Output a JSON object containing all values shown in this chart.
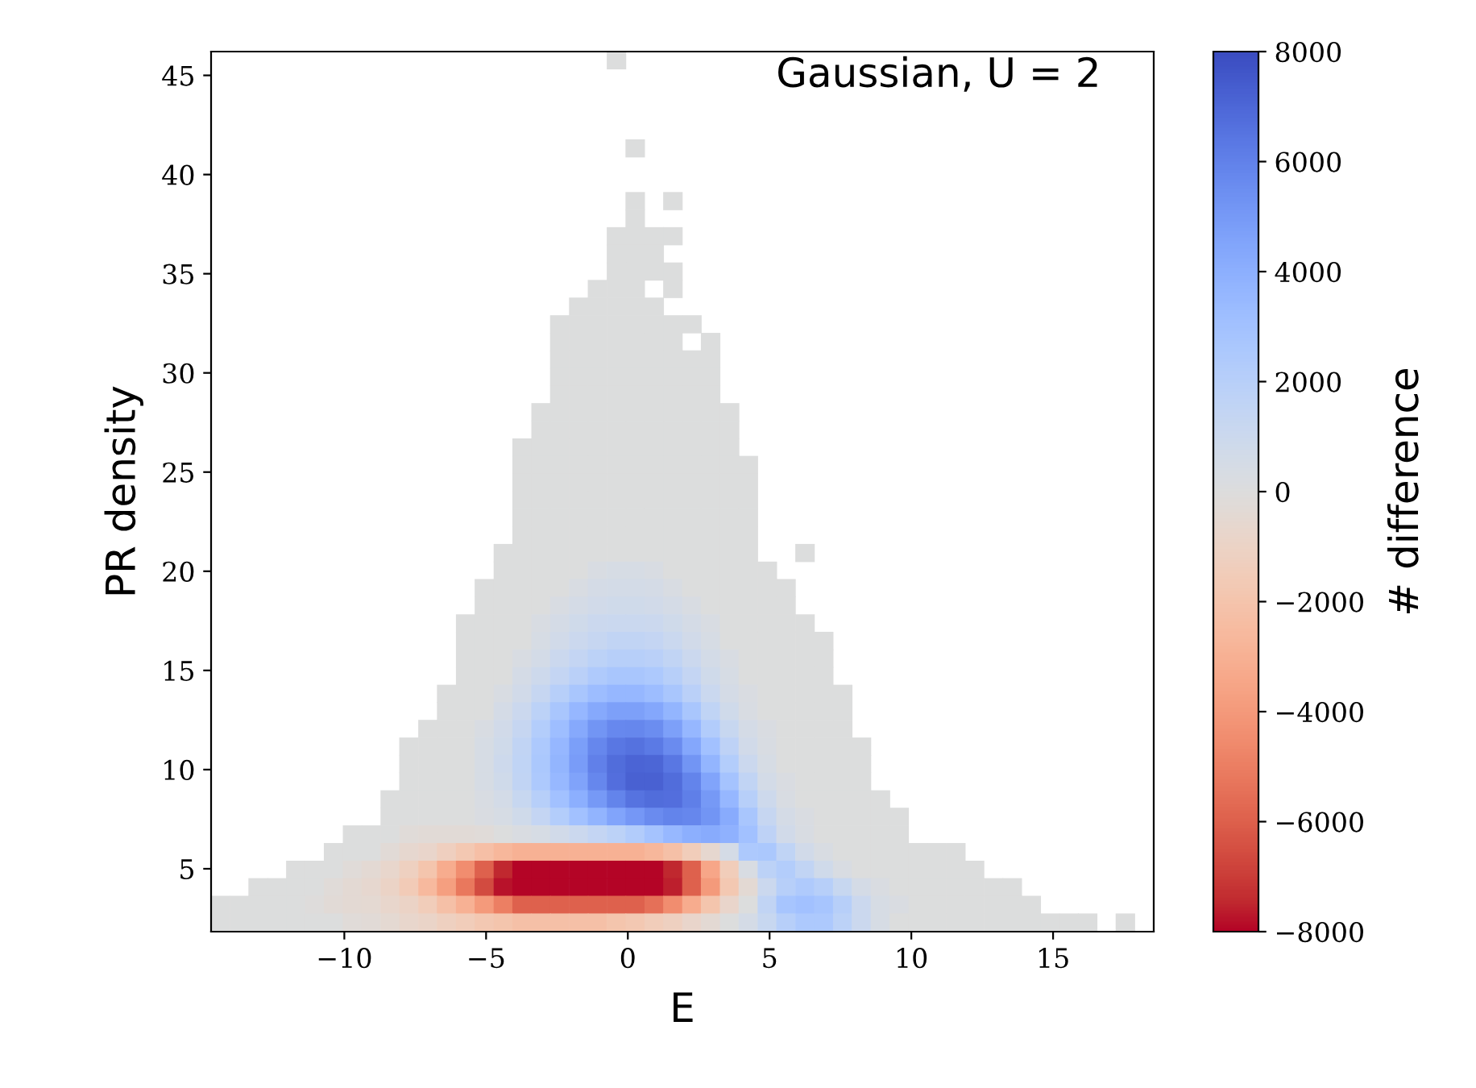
{
  "chart_data": {
    "type": "scatter",
    "marker": "square",
    "xlabel": "E",
    "ylabel": "PR density",
    "clabel": "# difference",
    "annotations": [
      "Gaussian, U = 2"
    ],
    "xlim": [
      -14.7,
      18.55
    ],
    "ylim": [
      1.83,
      46.2
    ],
    "xticks": [
      {
        "value": -10,
        "label": "−10"
      },
      {
        "value": -5,
        "label": "−5"
      },
      0,
      5,
      10,
      15
    ],
    "yticks": [
      5,
      10,
      15,
      20,
      25,
      30,
      35,
      40,
      45
    ],
    "clim": [
      -8000,
      8000
    ],
    "cticks": [
      {
        "value": -8000,
        "label": "−8000"
      },
      {
        "value": -6000,
        "label": "−6000"
      },
      {
        "value": -4000,
        "label": "−4000"
      },
      {
        "value": -2000,
        "label": "−2000"
      },
      0,
      2000,
      4000,
      6000,
      8000
    ],
    "x": [
      -0.4,
      0.26,
      0.26,
      1.59,
      0.26,
      -0.4,
      0.26,
      0.93,
      1.59,
      -0.4,
      0.26,
      0.93,
      -0.4,
      0.26,
      0.93,
      1.59,
      -1.07,
      -0.4,
      0.26,
      1.59,
      -1.73,
      -1.07,
      -0.4,
      0.26,
      0.93,
      -2.4,
      -1.73,
      -1.07,
      -0.4,
      0.26,
      0.93,
      1.59,
      2.26,
      -2.4,
      -1.73,
      -1.07,
      -0.4,
      0.26,
      0.93,
      1.59,
      2.92,
      -2.4,
      -1.73,
      -1.07,
      -0.4,
      0.26,
      0.93,
      1.59,
      2.26,
      2.92,
      -2.4,
      -1.73,
      -1.07,
      -0.4,
      0.26,
      0.93,
      1.59,
      2.26,
      2.92,
      -2.4,
      -1.73,
      -1.07,
      -0.4,
      0.26,
      0.93,
      1.59,
      2.26,
      2.92,
      -3.06,
      -2.4,
      -1.73,
      -1.07,
      -0.4,
      0.26,
      0.93,
      1.59,
      2.26,
      2.92,
      3.59,
      -3.06,
      -2.4,
      -1.73,
      -1.07,
      -0.4,
      0.26,
      0.93,
      1.59,
      2.26,
      2.92,
      3.59,
      -3.73,
      -3.06,
      -2.4,
      -1.73,
      -1.07,
      -0.4,
      0.26,
      0.93,
      1.59,
      2.26,
      2.92,
      3.59,
      -3.73,
      -3.06,
      -2.4,
      -1.73,
      -1.07,
      -0.4,
      0.26,
      0.93,
      1.59,
      2.26,
      2.92,
      3.59,
      4.25,
      -3.73,
      -3.06,
      -2.4,
      -1.73,
      -1.07,
      -0.4,
      0.26,
      0.93,
      1.59,
      2.26,
      2.92,
      3.59,
      4.25,
      -3.73,
      -3.06,
      -2.4,
      -1.73,
      -1.07,
      -0.4,
      0.26,
      0.93,
      1.59,
      2.26,
      2.92,
      3.59,
      4.25,
      -3.73,
      -3.06,
      -2.4,
      -1.73,
      -1.07,
      -0.4,
      0.26,
      0.93,
      1.59,
      2.26,
      2.92,
      3.59,
      4.25,
      -3.73,
      -3.06,
      -2.4,
      -1.73,
      -1.07,
      -0.4,
      0.26,
      0.93,
      1.59,
      2.26,
      2.92,
      3.59,
      4.25,
      -4.39,
      -3.73,
      -3.06,
      -2.4,
      -1.73,
      -1.07,
      -0.4,
      0.26,
      0.93,
      1.59,
      2.26,
      2.92,
      3.59,
      4.25,
      6.25,
      -4.39,
      -3.73,
      -3.06,
      -2.4,
      -1.73,
      -1.07,
      -0.4,
      0.26,
      0.93,
      1.59,
      2.26,
      2.92,
      3.59,
      4.25,
      4.92,
      -5.06,
      -4.39,
      -3.73,
      -3.06,
      -2.4,
      -1.73,
      -1.07,
      -0.4,
      0.26,
      0.93,
      1.59,
      2.26,
      2.92,
      3.59,
      4.25,
      4.92,
      5.58,
      -5.06,
      -4.39,
      -3.73,
      -3.06,
      -2.4,
      -1.73,
      -1.07,
      -0.4,
      0.26,
      0.93,
      1.59,
      2.26,
      2.92,
      3.59,
      4.25,
      4.92,
      5.58,
      -5.72,
      -5.06,
      -4.39,
      -3.73,
      -3.06,
      -2.4,
      -1.73,
      -1.07,
      -0.4,
      0.26,
      0.93,
      1.59,
      2.26,
      2.92,
      3.59,
      4.25,
      4.92,
      5.58,
      6.25,
      -5.72,
      -5.06,
      -4.39,
      -3.73,
      -3.06,
      -2.4,
      -1.73,
      -1.07,
      -0.4,
      0.26,
      0.93,
      1.59,
      2.26,
      2.92,
      3.59,
      4.25,
      4.92,
      5.58,
      6.25,
      6.91,
      -5.72,
      -5.06,
      -4.39,
      -3.73,
      -3.06,
      -2.4,
      -1.73,
      -1.07,
      -0.4,
      0.26,
      0.93,
      1.59,
      2.26,
      2.92,
      3.59,
      4.25,
      4.92,
      5.58,
      6.25,
      6.91,
      -5.72,
      -5.06,
      -4.39,
      -3.73,
      -3.06,
      -2.4,
      -1.73,
      -1.07,
      -0.4,
      0.26,
      0.93,
      1.59,
      2.26,
      2.92,
      3.59,
      4.25,
      4.92,
      5.58,
      6.25,
      6.91,
      -6.39,
      -5.72,
      -5.06,
      -4.39,
      -3.73,
      -3.06,
      -2.4,
      -1.73,
      -1.07,
      -0.4,
      0.26,
      0.93,
      1.59,
      2.26,
      2.92,
      3.59,
      4.25,
      4.92,
      5.58,
      6.25,
      6.91,
      7.58,
      -6.39,
      -5.72,
      -5.06,
      -4.39,
      -3.73,
      -3.06,
      -2.4,
      -1.73,
      -1.07,
      -0.4,
      0.26,
      0.93,
      1.59,
      2.26,
      2.92,
      3.59,
      4.25,
      4.92,
      5.58,
      6.25,
      6.91,
      7.58,
      -7.05,
      -6.39,
      -5.72,
      -5.06,
      -4.39,
      -3.73,
      -3.06,
      -2.4,
      -1.73,
      -1.07,
      -0.4,
      0.26,
      0.93,
      1.59,
      2.26,
      2.92,
      3.59,
      4.25,
      4.92,
      5.58,
      6.25,
      6.91,
      7.58,
      -7.72,
      -7.05,
      -6.39,
      -5.72,
      -5.06,
      -4.39,
      -3.73,
      -3.06,
      -2.4,
      -1.73,
      -1.07,
      -0.4,
      0.26,
      0.93,
      1.59,
      2.26,
      2.92,
      3.59,
      4.25,
      4.92,
      5.58,
      6.25,
      6.91,
      7.58,
      8.24,
      -7.72,
      -7.05,
      -6.39,
      -5.72,
      -5.06,
      -4.39,
      -3.73,
      -3.06,
      -2.4,
      -1.73,
      -1.07,
      -0.4,
      0.26,
      0.93,
      1.59,
      2.26,
      2.92,
      3.59,
      4.25,
      4.92,
      5.58,
      6.25,
      6.91,
      7.58,
      8.24,
      -7.72,
      -7.05,
      -6.39,
      -5.72,
      -5.06,
      -4.39,
      -3.73,
      -3.06,
      -2.4,
      -1.73,
      -1.07,
      -0.4,
      0.26,
      0.93,
      1.59,
      2.26,
      2.92,
      3.59,
      4.25,
      4.92,
      5.58,
      6.25,
      6.91,
      7.58,
      8.24,
      -8.38,
      -7.72,
      -7.05,
      -6.39,
      -5.72,
      -5.06,
      -4.39,
      -3.73,
      -3.06,
      -2.4,
      -1.73,
      -1.07,
      -0.4,
      0.26,
      0.93,
      1.59,
      2.26,
      2.92,
      3.59,
      4.25,
      4.92,
      5.58,
      6.25,
      6.91,
      7.58,
      8.24,
      8.91,
      -8.38,
      -7.72,
      -7.05,
      -6.39,
      -5.72,
      -5.06,
      -4.39,
      -3.73,
      -3.06,
      -2.4,
      -1.73,
      -1.07,
      -0.4,
      0.26,
      0.93,
      1.59,
      2.26,
      2.92,
      3.59,
      4.25,
      4.92,
      5.58,
      6.25,
      6.91,
      7.58,
      8.24,
      8.91,
      9.57,
      -9.71,
      -9.05,
      -8.38,
      -7.72,
      -7.05,
      -6.39,
      -5.72,
      -5.06,
      -4.39,
      -3.73,
      -3.06,
      -2.4,
      -1.73,
      -1.07,
      -0.4,
      0.26,
      0.93,
      1.59,
      2.26,
      2.92,
      3.59,
      4.25,
      4.92,
      5.58,
      6.25,
      6.91,
      7.58,
      8.24,
      8.91,
      9.57,
      -10.38,
      -9.71,
      -9.05,
      -8.38,
      -7.72,
      -7.05,
      -6.39,
      -5.72,
      -5.06,
      -4.39,
      -3.73,
      -3.06,
      -2.4,
      -1.73,
      -1.07,
      -0.4,
      0.26,
      0.93,
      1.59,
      2.26,
      2.92,
      3.59,
      4.25,
      4.92,
      5.58,
      6.25,
      6.91,
      7.58,
      8.24,
      8.91,
      9.57,
      10.24,
      10.9,
      11.57,
      -11.71,
      -11.04,
      -10.38,
      -9.71,
      -9.05,
      -8.38,
      -7.72,
      -7.05,
      -6.39,
      -5.72,
      -5.06,
      -4.39,
      -3.73,
      -3.06,
      -2.4,
      -1.73,
      -1.07,
      -0.4,
      0.26,
      0.93,
      1.59,
      2.26,
      2.92,
      3.59,
      4.25,
      4.92,
      5.58,
      6.25,
      6.91,
      7.58,
      8.24,
      8.91,
      9.57,
      10.24,
      10.9,
      11.57,
      12.23,
      -13.04,
      -12.37,
      -11.71,
      -11.04,
      -10.38,
      -9.71,
      -9.05,
      -8.38,
      -7.72,
      -7.05,
      -6.39,
      -5.72,
      -5.06,
      -4.39,
      -3.73,
      -3.06,
      -2.4,
      -1.73,
      -1.07,
      -0.4,
      0.26,
      0.93,
      1.59,
      2.26,
      2.92,
      3.59,
      4.25,
      4.92,
      5.58,
      6.25,
      6.91,
      7.58,
      8.24,
      8.91,
      9.57,
      10.24,
      10.9,
      11.57,
      12.23,
      12.9,
      13.56,
      -14.37,
      -13.7,
      -13.04,
      -12.37,
      -11.71,
      -11.04,
      -10.38,
      -9.71,
      -9.05,
      -8.38,
      -7.72,
      -7.05,
      -6.39,
      -5.72,
      -5.06,
      -4.39,
      -3.73,
      -3.06,
      -2.4,
      -1.73,
      -1.07,
      -0.4,
      0.26,
      0.93,
      1.59,
      2.26,
      2.92,
      3.59,
      4.25,
      4.92,
      5.58,
      6.25,
      6.91,
      7.58,
      8.24,
      8.91,
      9.57,
      10.24,
      10.9,
      11.57,
      12.23,
      12.9,
      13.56,
      14.23,
      -14.37,
      -13.7,
      -13.04,
      -12.37,
      -11.71,
      -11.04,
      -10.38,
      -9.71,
      -9.05,
      -8.38,
      -7.72,
      -7.05,
      -6.39,
      -5.72,
      -5.06,
      -4.39,
      -3.73,
      -3.06,
      -2.4,
      -1.73,
      -1.07,
      -0.4,
      0.26,
      0.93,
      1.59,
      2.26,
      2.92,
      3.59,
      4.25,
      4.92,
      5.58,
      6.25,
      6.91,
      7.58,
      8.24,
      8.91,
      9.57,
      10.24,
      10.9,
      11.57,
      12.23,
      12.9,
      13.56,
      14.23,
      14.89,
      15.56,
      16.22,
      17.55
    ],
    "values": [
      45.76,
      41.32,
      38.66,
      38.66,
      37.77,
      36.89,
      36.89,
      36.89,
      36.89,
      36.0,
      36.0,
      36.0,
      35.11,
      35.11,
      35.11,
      35.11,
      34.23,
      34.23,
      34.23,
      34.23,
      33.34,
      33.34,
      33.34,
      33.34,
      33.34,
      32.45,
      32.45,
      32.45,
      32.45,
      32.45,
      32.45,
      32.45,
      32.45,
      31.56,
      31.56,
      31.56,
      31.56,
      31.56,
      31.56,
      31.56,
      31.56,
      30.68,
      30.68,
      30.68,
      30.68,
      30.68,
      30.68,
      30.68,
      30.68,
      30.68,
      29.79,
      29.79,
      29.79,
      29.79,
      29.79,
      29.79,
      29.79,
      29.79,
      29.79,
      28.9,
      28.9,
      28.9,
      28.9,
      28.9,
      28.9,
      28.9,
      28.9,
      28.9,
      28.02,
      28.02,
      28.02,
      28.02,
      28.02,
      28.02,
      28.02,
      28.02,
      28.02,
      28.02,
      28.02,
      27.13,
      27.13,
      27.13,
      27.13,
      27.13,
      27.13,
      27.13,
      27.13,
      27.13,
      27.13,
      27.13,
      26.24,
      26.24,
      26.24,
      26.24,
      26.24,
      26.24,
      26.24,
      26.24,
      26.24,
      26.24,
      26.24,
      26.24,
      25.36,
      25.36,
      25.36,
      25.36,
      25.36,
      25.36,
      25.36,
      25.36,
      25.36,
      25.36,
      25.36,
      25.36,
      25.36,
      24.47,
      24.47,
      24.47,
      24.47,
      24.47,
      24.47,
      24.47,
      24.47,
      24.47,
      24.47,
      24.47,
      24.47,
      24.47,
      23.58,
      23.58,
      23.58,
      23.58,
      23.58,
      23.58,
      23.58,
      23.58,
      23.58,
      23.58,
      23.58,
      23.58,
      23.58,
      22.69,
      22.69,
      22.69,
      22.69,
      22.69,
      22.69,
      22.69,
      22.69,
      22.69,
      22.69,
      22.69,
      22.69,
      22.69,
      21.81,
      21.81,
      21.81,
      21.81,
      21.81,
      21.81,
      21.81,
      21.81,
      21.81,
      21.81,
      21.81,
      21.81,
      21.81,
      20.92,
      20.92,
      20.92,
      20.92,
      20.92,
      20.92,
      20.92,
      20.92,
      20.92,
      20.92,
      20.92,
      20.92,
      20.92,
      20.92,
      20.92,
      20.03,
      20.03,
      20.03,
      20.03,
      20.03,
      20.03,
      20.03,
      20.03,
      20.03,
      20.03,
      20.03,
      20.03,
      20.03,
      20.03,
      20.03,
      19.15,
      19.15,
      19.15,
      19.15,
      19.15,
      19.15,
      19.15,
      19.15,
      19.15,
      19.15,
      19.15,
      19.15,
      19.15,
      19.15,
      19.15,
      19.15,
      19.15,
      18.26,
      18.26,
      18.26,
      18.26,
      18.26,
      18.26,
      18.26,
      18.26,
      18.26,
      18.26,
      18.26,
      18.26,
      18.26,
      18.26,
      18.26,
      18.26,
      18.26,
      17.37,
      17.37,
      17.37,
      17.37,
      17.37,
      17.37,
      17.37,
      17.37,
      17.37,
      17.37,
      17.37,
      17.37,
      17.37,
      17.37,
      17.37,
      17.37,
      17.37,
      17.37,
      17.37,
      16.49,
      16.49,
      16.49,
      16.49,
      16.49,
      16.49,
      16.49,
      16.49,
      16.49,
      16.49,
      16.49,
      16.49,
      16.49,
      16.49,
      16.49,
      16.49,
      16.49,
      16.49,
      16.49,
      16.49,
      15.6,
      15.6,
      15.6,
      15.6,
      15.6,
      15.6,
      15.6,
      15.6,
      15.6,
      15.6,
      15.6,
      15.6,
      15.6,
      15.6,
      15.6,
      15.6,
      15.6,
      15.6,
      15.6,
      15.6,
      14.71,
      14.71,
      14.71,
      14.71,
      14.71,
      14.71,
      14.71,
      14.71,
      14.71,
      14.71,
      14.71,
      14.71,
      14.71,
      14.71,
      14.71,
      14.71,
      14.71,
      14.71,
      14.71,
      14.71,
      13.82,
      13.82,
      13.82,
      13.82,
      13.82,
      13.82,
      13.82,
      13.82,
      13.82,
      13.82,
      13.82,
      13.82,
      13.82,
      13.82,
      13.82,
      13.82,
      13.82,
      13.82,
      13.82,
      13.82,
      13.82,
      13.82,
      12.94,
      12.94,
      12.94,
      12.94,
      12.94,
      12.94,
      12.94,
      12.94,
      12.94,
      12.94,
      12.94,
      12.94,
      12.94,
      12.94,
      12.94,
      12.94,
      12.94,
      12.94,
      12.94,
      12.94,
      12.94,
      12.94,
      12.05,
      12.05,
      12.05,
      12.05,
      12.05,
      12.05,
      12.05,
      12.05,
      12.05,
      12.05,
      12.05,
      12.05,
      12.05,
      12.05,
      12.05,
      12.05,
      12.05,
      12.05,
      12.05,
      12.05,
      12.05,
      12.05,
      12.05,
      11.16,
      11.16,
      11.16,
      11.16,
      11.16,
      11.16,
      11.16,
      11.16,
      11.16,
      11.16,
      11.16,
      11.16,
      11.16,
      11.16,
      11.16,
      11.16,
      11.16,
      11.16,
      11.16,
      11.16,
      11.16,
      11.16,
      11.16,
      11.16,
      11.16,
      10.28,
      10.28,
      10.28,
      10.28,
      10.28,
      10.28,
      10.28,
      10.28,
      10.28,
      10.28,
      10.28,
      10.28,
      10.28,
      10.28,
      10.28,
      10.28,
      10.28,
      10.28,
      10.28,
      10.28,
      10.28,
      10.28,
      10.28,
      10.28,
      10.28,
      9.39,
      9.39,
      9.39,
      9.39,
      9.39,
      9.39,
      9.39,
      9.39,
      9.39,
      9.39,
      9.39,
      9.39,
      9.39,
      9.39,
      9.39,
      9.39,
      9.39,
      9.39,
      9.39,
      9.39,
      9.39,
      9.39,
      9.39,
      9.39,
      9.39,
      8.5,
      8.5,
      8.5,
      8.5,
      8.5,
      8.5,
      8.5,
      8.5,
      8.5,
      8.5,
      8.5,
      8.5,
      8.5,
      8.5,
      8.5,
      8.5,
      8.5,
      8.5,
      8.5,
      8.5,
      8.5,
      8.5,
      8.5,
      8.5,
      8.5,
      8.5,
      8.5,
      7.62,
      7.62,
      7.62,
      7.62,
      7.62,
      7.62,
      7.62,
      7.62,
      7.62,
      7.62,
      7.62,
      7.62,
      7.62,
      7.62,
      7.62,
      7.62,
      7.62,
      7.62,
      7.62,
      7.62,
      7.62,
      7.62,
      7.62,
      7.62,
      7.62,
      7.62,
      7.62,
      7.62,
      6.73,
      6.73,
      6.73,
      6.73,
      6.73,
      6.73,
      6.73,
      6.73,
      6.73,
      6.73,
      6.73,
      6.73,
      6.73,
      6.73,
      6.73,
      6.73,
      6.73,
      6.73,
      6.73,
      6.73,
      6.73,
      6.73,
      6.73,
      6.73,
      6.73,
      6.73,
      6.73,
      6.73,
      6.73,
      6.73,
      5.84,
      5.84,
      5.84,
      5.84,
      5.84,
      5.84,
      5.84,
      5.84,
      5.84,
      5.84,
      5.84,
      5.84,
      5.84,
      5.84,
      5.84,
      5.84,
      5.84,
      5.84,
      5.84,
      5.84,
      5.84,
      5.84,
      5.84,
      5.84,
      5.84,
      5.84,
      5.84,
      5.84,
      5.84,
      5.84,
      5.84,
      5.84,
      5.84,
      5.84,
      4.95,
      4.95,
      4.95,
      4.95,
      4.95,
      4.95,
      4.95,
      4.95,
      4.95,
      4.95,
      4.95,
      4.95,
      4.95,
      4.95,
      4.95,
      4.95,
      4.95,
      4.95,
      4.95,
      4.95,
      4.95,
      4.95,
      4.95,
      4.95,
      4.95,
      4.95,
      4.95,
      4.95,
      4.95,
      4.95,
      4.95,
      4.95,
      4.95,
      4.95,
      4.95,
      4.95,
      4.95,
      4.07,
      4.07,
      4.07,
      4.07,
      4.07,
      4.07,
      4.07,
      4.07,
      4.07,
      4.07,
      4.07,
      4.07,
      4.07,
      4.07,
      4.07,
      4.07,
      4.07,
      4.07,
      4.07,
      4.07,
      4.07,
      4.07,
      4.07,
      4.07,
      4.07,
      4.07,
      4.07,
      4.07,
      4.07,
      4.07,
      4.07,
      4.07,
      4.07,
      4.07,
      4.07,
      4.07,
      4.07,
      4.07,
      4.07,
      4.07,
      4.07,
      3.18,
      3.18,
      3.18,
      3.18,
      3.18,
      3.18,
      3.18,
      3.18,
      3.18,
      3.18,
      3.18,
      3.18,
      3.18,
      3.18,
      3.18,
      3.18,
      3.18,
      3.18,
      3.18,
      3.18,
      3.18,
      3.18,
      3.18,
      3.18,
      3.18,
      3.18,
      3.18,
      3.18,
      3.18,
      3.18,
      3.18,
      3.18,
      3.18,
      3.18,
      3.18,
      3.18,
      3.18,
      3.18,
      3.18,
      3.18,
      3.18,
      3.18,
      3.18,
      3.18,
      2.29,
      2.29,
      2.29,
      2.29,
      2.29,
      2.29,
      2.29,
      2.29,
      2.29,
      2.29,
      2.29,
      2.29,
      2.29,
      2.29,
      2.29,
      2.29,
      2.29,
      2.29,
      2.29,
      2.29,
      2.29,
      2.29,
      2.29,
      2.29,
      2.29,
      2.29,
      2.29,
      2.29,
      2.29,
      2.29,
      2.29,
      2.29,
      2.29,
      2.29,
      2.29,
      2.29,
      2.29,
      2.29,
      2.29,
      2.29,
      2.29,
      2.29,
      2.29,
      2.29,
      2.29,
      2.29,
      2.29,
      2.29
    ],
    "cvalues": [
      0,
      0,
      0,
      0,
      0,
      0,
      0,
      0,
      0,
      0,
      0,
      0,
      0,
      0,
      0,
      0,
      0,
      0,
      0,
      0,
      0,
      0,
      0,
      0,
      0,
      0,
      0,
      0,
      0,
      0,
      0,
      0,
      0,
      0,
      0,
      0,
      0,
      0,
      0,
      0,
      0,
      0,
      0,
      0,
      0,
      0,
      0,
      0,
      0,
      0,
      0,
      0,
      0,
      0,
      0,
      0,
      0,
      0,
      0,
      0,
      0,
      0,
      0,
      0,
      0,
      0,
      0,
      0,
      0,
      0,
      0,
      0,
      0,
      0,
      0,
      0,
      0,
      0,
      0,
      0,
      0,
      0,
      0,
      0,
      0,
      0,
      0,
      0,
      0,
      0,
      0,
      0,
      0,
      0,
      0,
      0,
      0,
      0,
      0,
      0,
      0,
      0,
      0,
      0,
      0,
      0,
      0,
      0,
      0,
      0,
      0,
      0,
      0,
      0,
      0,
      0,
      0,
      0,
      0,
      0,
      0,
      0,
      0,
      0,
      0,
      0,
      0,
      0,
      0,
      0,
      0,
      0,
      0,
      0,
      0,
      0,
      0,
      0,
      0,
      0,
      0,
      0,
      0,
      0,
      0,
      0,
      0,
      0,
      0,
      0,
      0,
      0,
      0,
      0,
      0,
      0,
      0,
      0,
      0,
      0,
      0,
      0,
      0,
      0,
      0,
      0,
      0,
      0,
      0,
      0,
      0,
      0,
      0,
      0,
      0,
      0,
      0,
      0,
      0,
      0,
      0,
      0,
      0,
      0,
      0,
      0,
      0,
      300,
      400,
      400,
      300,
      0,
      0,
      0,
      0,
      0,
      0,
      0,
      0,
      0,
      0,
      0,
      300,
      500,
      600,
      600,
      500,
      300,
      0,
      0,
      0,
      0,
      0,
      0,
      0,
      0,
      0,
      0,
      300,
      500,
      700,
      800,
      800,
      700,
      500,
      300,
      0,
      0,
      0,
      0,
      0,
      0,
      0,
      0,
      0,
      300,
      500,
      800,
      1000,
      1100,
      1100,
      1000,
      800,
      500,
      300,
      0,
      0,
      0,
      0,
      0,
      0,
      0,
      0,
      0,
      400,
      700,
      1000,
      1300,
      1500,
      1500,
      1400,
      1100,
      700,
      400,
      0,
      0,
      0,
      0,
      0,
      0,
      0,
      0,
      0,
      300,
      600,
      1000,
      1400,
      1800,
      2000,
      2000,
      1900,
      1500,
      1000,
      600,
      300,
      0,
      0,
      0,
      0,
      0,
      0,
      0,
      0,
      500,
      900,
      1400,
      1900,
      2400,
      2700,
      2700,
      2500,
      2000,
      1400,
      800,
      400,
      0,
      0,
      0,
      0,
      0,
      0,
      0,
      0,
      300,
      700,
      1300,
      2000,
      2700,
      3300,
      3600,
      3600,
      3300,
      2700,
      1900,
      1100,
      500,
      200,
      0,
      0,
      0,
      0,
      0,
      0,
      0,
      0,
      500,
      1000,
      1800,
      2700,
      3600,
      4300,
      4700,
      4700,
      4400,
      3700,
      2700,
      1600,
      800,
      300,
      0,
      0,
      0,
      0,
      0,
      0,
      0,
      0,
      300,
      700,
      1300,
      2200,
      3200,
      4300,
      5200,
      5700,
      5800,
      5500,
      4700,
      3600,
      2300,
      1200,
      500,
      200,
      0,
      0,
      0,
      0,
      0,
      0,
      0,
      0,
      400,
      800,
      1500,
      2500,
      3600,
      4800,
      5800,
      6400,
      6600,
      6300,
      5600,
      4400,
      3000,
      1700,
      700,
      300,
      0,
      0,
      0,
      0,
      0,
      0,
      0,
      0,
      0,
      400,
      900,
      1600,
      2600,
      3700,
      4900,
      6000,
      6800,
      7100,
      7000,
      6400,
      5200,
      3700,
      2200,
      1000,
      400,
      0,
      0,
      0,
      0,
      0,
      0,
      0,
      0,
      0,
      400,
      800,
      1500,
      2500,
      3500,
      4600,
      5800,
      6700,
      7200,
      7200,
      6800,
      5900,
      4500,
      2900,
      1500,
      600,
      200,
      0,
      0,
      0,
      0,
      0,
      0,
      0,
      0,
      0,
      300,
      600,
      1200,
      2000,
      3000,
      4000,
      5000,
      5900,
      6500,
      6800,
      6700,
      6100,
      5000,
      3600,
      2000,
      900,
      300,
      0,
      0,
      0,
      0,
      0,
      0,
      0,
      0,
      0,
      0,
      200,
      400,
      800,
      1400,
      2200,
      3000,
      3800,
      4500,
      5100,
      5600,
      5900,
      5800,
      5200,
      4200,
      2700,
      1300,
      500,
      200,
      0,
      0,
      0,
      0,
      0,
      0,
      0,
      0,
      -200,
      -300,
      -300,
      -300,
      -200,
      0,
      200,
      400,
      700,
      1000,
      1400,
      1800,
      2300,
      2900,
      3500,
      4000,
      4200,
      3900,
      3000,
      1700,
      700,
      300,
      0,
      0,
      0,
      0,
      0,
      0,
      0,
      0,
      -300,
      -600,
      -800,
      -1300,
      -1800,
      -2300,
      -2700,
      -3000,
      -3000,
      -3000,
      -3000,
      -3000,
      -3000,
      -3000,
      -2700,
      -2200,
      -1500,
      -600,
      500,
      2500,
      2600,
      1600,
      700,
      300,
      0,
      0,
      0,
      0,
      0,
      0,
      0,
      0,
      0,
      0,
      -200,
      -400,
      -700,
      -1200,
      -2000,
      -3200,
      -4500,
      -6000,
      -7500,
      -8000,
      -8000,
      -8000,
      -8000,
      -8000,
      -8000,
      -8000,
      -8000,
      -7500,
      -6000,
      -3500,
      -1500,
      300,
      1800,
      2200,
      1500,
      800,
      300,
      0,
      0,
      0,
      0,
      0,
      0,
      0,
      0,
      0,
      0,
      0,
      -200,
      -400,
      -600,
      -1000,
      -1600,
      -2600,
      -3800,
      -5200,
      -6600,
      -7800,
      -8000,
      -8000,
      -8000,
      -8000,
      -8000,
      -8000,
      -8000,
      -8000,
      -7600,
      -6000,
      -4000,
      -1800,
      -400,
      1000,
      2000,
      2400,
      2000,
      1200,
      500,
      200,
      0,
      0,
      0,
      0,
      0,
      0,
      0,
      0,
      0,
      0,
      0,
      0,
      -100,
      -300,
      -400,
      -500,
      -700,
      -1000,
      -1500,
      -2200,
      -3000,
      -4000,
      -5000,
      -6000,
      -6000,
      -6000,
      -6000,
      -6000,
      -6000,
      -6000,
      -5500,
      -4500,
      -3200,
      -2000,
      -800,
      0,
      1500,
      2800,
      3000,
      2800,
      2000,
      1000,
      400,
      200,
      0,
      0,
      0,
      0,
      0,
      0,
      0,
      0,
      0,
      0,
      0,
      0,
      0,
      0,
      -200,
      -300,
      -500,
      -700,
      -900,
      -1200,
      -1500,
      -1800,
      -2000,
      -2200,
      -2200,
      -2200,
      -2200,
      -2200,
      -2000,
      -1800,
      -1500,
      -1200,
      -800,
      -400,
      0,
      500,
      1200,
      2000,
      2500,
      2500,
      1800,
      1000,
      400,
      0,
      0,
      0,
      0,
      0,
      0,
      0,
      0,
      0,
      0,
      0,
      0
    ]
  }
}
